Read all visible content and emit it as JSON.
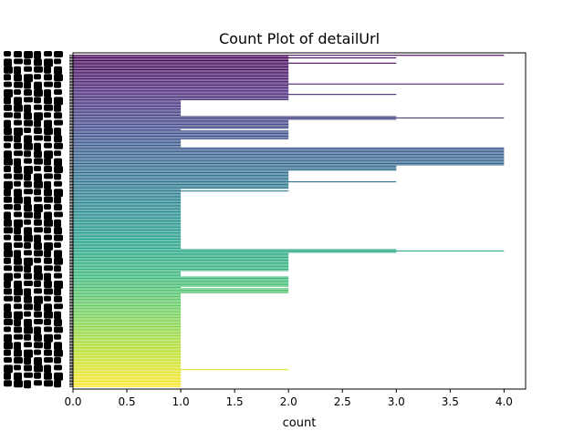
{
  "chart_data": {
    "type": "bar",
    "orientation": "horizontal",
    "title": "Count Plot of detailUrl",
    "xlabel": "count",
    "ylabel": "",
    "xlim": [
      0,
      4.2
    ],
    "xticks": [
      0.0,
      0.5,
      1.0,
      1.5,
      2.0,
      2.5,
      3.0,
      3.5,
      4.0
    ],
    "xtick_labels": [
      "0.0",
      "0.5",
      "1.0",
      "1.5",
      "2.0",
      "2.5",
      "3.0",
      "3.5",
      "4.0"
    ],
    "category_count": 236,
    "colormap": "viridis",
    "grid": false,
    "legend": "none",
    "values": [
      4,
      2,
      3,
      2,
      2,
      2,
      3,
      2,
      2,
      2,
      2,
      2,
      2,
      2,
      2,
      2,
      2,
      2,
      2,
      2,
      2,
      2,
      4,
      2,
      2,
      2,
      2,
      2,
      2,
      2,
      3,
      2,
      2,
      2,
      2,
      1,
      1,
      1,
      1,
      1,
      1,
      1,
      1,
      1,
      1,
      1,
      1,
      3,
      4,
      3,
      2,
      2,
      2,
      2,
      2,
      2,
      2,
      1,
      2,
      2,
      2,
      2,
      2,
      2,
      2,
      1,
      1,
      1,
      1,
      1,
      1,
      4,
      4,
      4,
      4,
      4,
      4,
      4,
      4,
      4,
      4,
      4,
      4,
      4,
      4,
      3,
      3,
      3,
      3,
      2,
      2,
      2,
      2,
      2,
      2,
      2,
      2,
      3,
      2,
      2,
      2,
      2,
      2,
      1,
      2,
      1,
      1,
      1,
      1,
      1,
      1,
      1,
      1,
      1,
      1,
      1,
      1,
      1,
      1,
      1,
      1,
      1,
      1,
      1,
      1,
      1,
      1,
      1,
      1,
      1,
      1,
      1,
      1,
      1,
      1,
      1,
      1,
      1,
      1,
      1,
      1,
      1,
      1,
      1,
      1,
      1,
      1,
      1,
      1,
      3,
      4,
      3,
      2,
      2,
      2,
      2,
      2,
      2,
      2,
      2,
      2,
      2,
      2,
      2,
      2,
      2,
      1,
      1,
      1,
      1,
      2,
      2,
      2,
      2,
      2,
      2,
      2,
      2,
      1,
      2,
      2,
      2,
      2,
      1,
      1,
      1,
      1,
      1,
      1,
      1,
      1,
      1,
      1,
      1,
      1,
      1,
      1,
      1,
      1,
      1,
      1,
      1,
      1,
      1,
      1,
      1,
      1,
      1,
      1,
      1,
      1,
      1,
      1,
      1,
      1,
      1,
      1,
      1,
      1,
      1,
      1,
      1,
      1,
      1,
      1,
      1,
      1,
      1,
      1,
      1,
      1,
      1,
      1,
      1,
      1,
      1,
      1,
      1,
      1,
      1,
      1,
      2,
      1,
      1,
      1,
      1,
      1,
      1,
      1,
      1,
      1,
      1,
      1,
      1,
      1
    ],
    "series": [
      {
        "values_ref": "values"
      }
    ],
    "colors": {
      "viridis_stops": [
        "#440154",
        "#482878",
        "#3e4989",
        "#31688e",
        "#26828e",
        "#1f9e89",
        "#35b779",
        "#6ece58",
        "#b5de2b",
        "#fde725"
      ],
      "axis": "#000000",
      "background": "#ffffff"
    }
  }
}
